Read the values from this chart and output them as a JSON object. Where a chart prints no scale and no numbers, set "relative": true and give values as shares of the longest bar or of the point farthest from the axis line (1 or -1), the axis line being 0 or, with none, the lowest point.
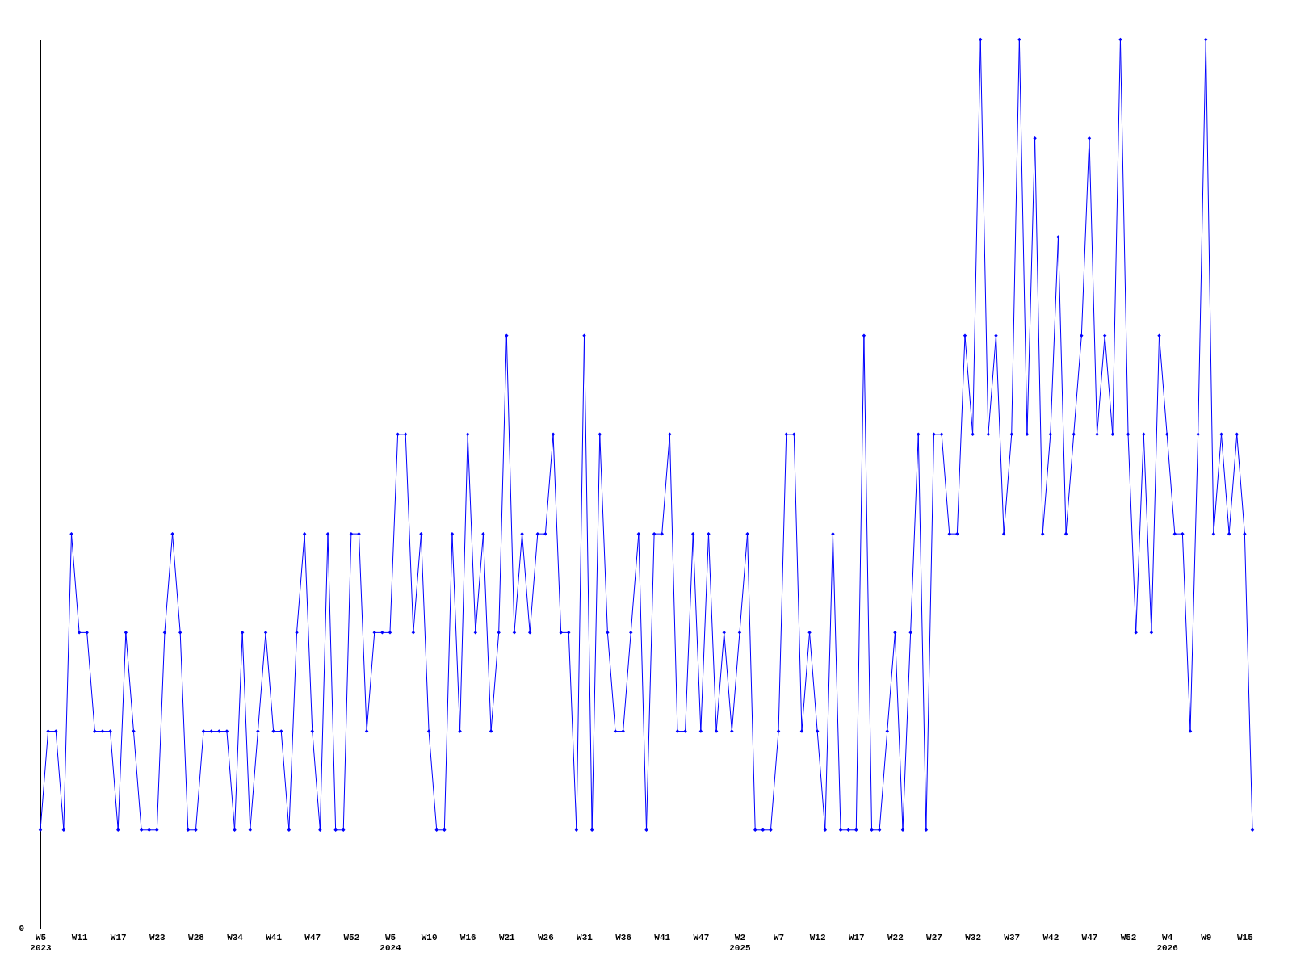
{
  "chart_data": {
    "type": "line",
    "relative": true,
    "marker": "diamond",
    "line_style": "solid",
    "grid": false,
    "categories": [
      "W5\n2023",
      null,
      null,
      null,
      null,
      "W11",
      null,
      null,
      null,
      null,
      "W17",
      null,
      null,
      null,
      null,
      "W23",
      null,
      null,
      null,
      null,
      "W28",
      null,
      null,
      null,
      null,
      "W34",
      null,
      null,
      null,
      null,
      "W41",
      null,
      null,
      null,
      null,
      "W47",
      null,
      null,
      null,
      null,
      "W52",
      null,
      null,
      null,
      null,
      "W5\n2024",
      null,
      null,
      null,
      null,
      "W10",
      null,
      null,
      null,
      null,
      "W16",
      null,
      null,
      null,
      null,
      "W21",
      null,
      null,
      null,
      null,
      "W26",
      null,
      null,
      null,
      null,
      "W31",
      null,
      null,
      null,
      null,
      "W36",
      null,
      null,
      null,
      null,
      "W41",
      null,
      null,
      null,
      null,
      "W47",
      null,
      null,
      null,
      null,
      "W2\n2025",
      null,
      null,
      null,
      null,
      "W7",
      null,
      null,
      null,
      null,
      "W12",
      null,
      null,
      null,
      null,
      "W17",
      null,
      null,
      null,
      null,
      "W22",
      null,
      null,
      null,
      null,
      "W27",
      null,
      null,
      null,
      null,
      "W32",
      null,
      null,
      null,
      null,
      "W37",
      null,
      null,
      null,
      null,
      "W42",
      null,
      null,
      null,
      null,
      "W47",
      null,
      null,
      null,
      null,
      "W52",
      null,
      null,
      null,
      null,
      "W4\n2026",
      null,
      null,
      null,
      null,
      "W9",
      null,
      null,
      null,
      null,
      "W15",
      null
    ],
    "series": [
      {
        "color": "#0000ff",
        "values": [
          0.111,
          0.222,
          0.222,
          0.111,
          0.444,
          0.333,
          0.333,
          0.222,
          0.222,
          0.222,
          0.111,
          0.333,
          0.222,
          0.111,
          0.111,
          0.111,
          0.333,
          0.444,
          0.333,
          0.111,
          0.111,
          0.222,
          0.222,
          0.222,
          0.222,
          0.111,
          0.333,
          0.111,
          0.222,
          0.333,
          0.222,
          0.222,
          0.111,
          0.333,
          0.444,
          0.222,
          0.111,
          0.444,
          0.111,
          0.111,
          0.444,
          0.444,
          0.222,
          0.333,
          0.333,
          0.333,
          0.556,
          0.556,
          0.333,
          0.444,
          0.222,
          0.111,
          0.111,
          0.444,
          0.222,
          0.556,
          0.333,
          0.444,
          0.222,
          0.333,
          0.667,
          0.333,
          0.444,
          0.333,
          0.444,
          0.444,
          0.556,
          0.333,
          0.333,
          0.111,
          0.667,
          0.111,
          0.556,
          0.333,
          0.222,
          0.222,
          0.333,
          0.444,
          0.111,
          0.444,
          0.444,
          0.556,
          0.222,
          0.222,
          0.444,
          0.222,
          0.444,
          0.222,
          0.333,
          0.222,
          0.333,
          0.444,
          0.111,
          0.111,
          0.111,
          0.222,
          0.556,
          0.556,
          0.222,
          0.333,
          0.222,
          0.111,
          0.444,
          0.111,
          0.111,
          0.111,
          0.667,
          0.111,
          0.111,
          0.222,
          0.333,
          0.111,
          0.333,
          0.556,
          0.111,
          0.556,
          0.556,
          0.444,
          0.444,
          0.667,
          0.556,
          1,
          0.556,
          0.667,
          0.444,
          0.556,
          1,
          0.556,
          0.889,
          0.444,
          0.556,
          0.778,
          0.444,
          0.556,
          0.667,
          0.889,
          0.556,
          0.667,
          0.556,
          1,
          0.556,
          0.333,
          0.556,
          0.333,
          0.667,
          0.556,
          0.444,
          0.444,
          0.222,
          0.556,
          1,
          0.444,
          0.556,
          0.444,
          0.556,
          0.444,
          0.111
        ]
      }
    ],
    "annotations": [
      "0"
    ]
  }
}
